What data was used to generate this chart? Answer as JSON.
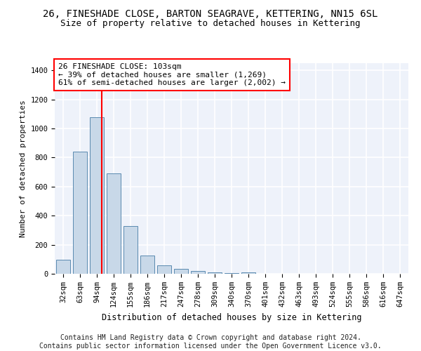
{
  "title1": "26, FINESHADE CLOSE, BARTON SEAGRAVE, KETTERING, NN15 6SL",
  "title2": "Size of property relative to detached houses in Kettering",
  "xlabel": "Distribution of detached houses by size in Kettering",
  "ylabel": "Number of detached properties",
  "bin_labels": [
    "32sqm",
    "63sqm",
    "94sqm",
    "124sqm",
    "155sqm",
    "186sqm",
    "217sqm",
    "247sqm",
    "278sqm",
    "309sqm",
    "340sqm",
    "370sqm",
    "401sqm",
    "432sqm",
    "463sqm",
    "493sqm",
    "524sqm",
    "555sqm",
    "586sqm",
    "616sqm",
    "647sqm"
  ],
  "bar_values": [
    95,
    840,
    1080,
    690,
    330,
    125,
    60,
    32,
    20,
    12,
    7,
    8,
    0,
    0,
    0,
    0,
    0,
    0,
    0,
    0,
    0
  ],
  "bar_color": "#c8d8e8",
  "bar_edge_color": "#5a8ab0",
  "annotation_text": "26 FINESHADE CLOSE: 103sqm\n← 39% of detached houses are smaller (1,269)\n61% of semi-detached houses are larger (2,002) →",
  "annotation_box_color": "white",
  "annotation_box_edge_color": "red",
  "vline_x": 2.3,
  "vline_color": "red",
  "ylim": [
    0,
    1450
  ],
  "yticks": [
    0,
    200,
    400,
    600,
    800,
    1000,
    1200,
    1400
  ],
  "footer_text": "Contains HM Land Registry data © Crown copyright and database right 2024.\nContains public sector information licensed under the Open Government Licence v3.0.",
  "bg_color": "#eef2fa",
  "grid_color": "white",
  "title1_fontsize": 10,
  "title2_fontsize": 9,
  "xlabel_fontsize": 8.5,
  "ylabel_fontsize": 8,
  "tick_fontsize": 7.5,
  "annotation_fontsize": 8,
  "footer_fontsize": 7
}
